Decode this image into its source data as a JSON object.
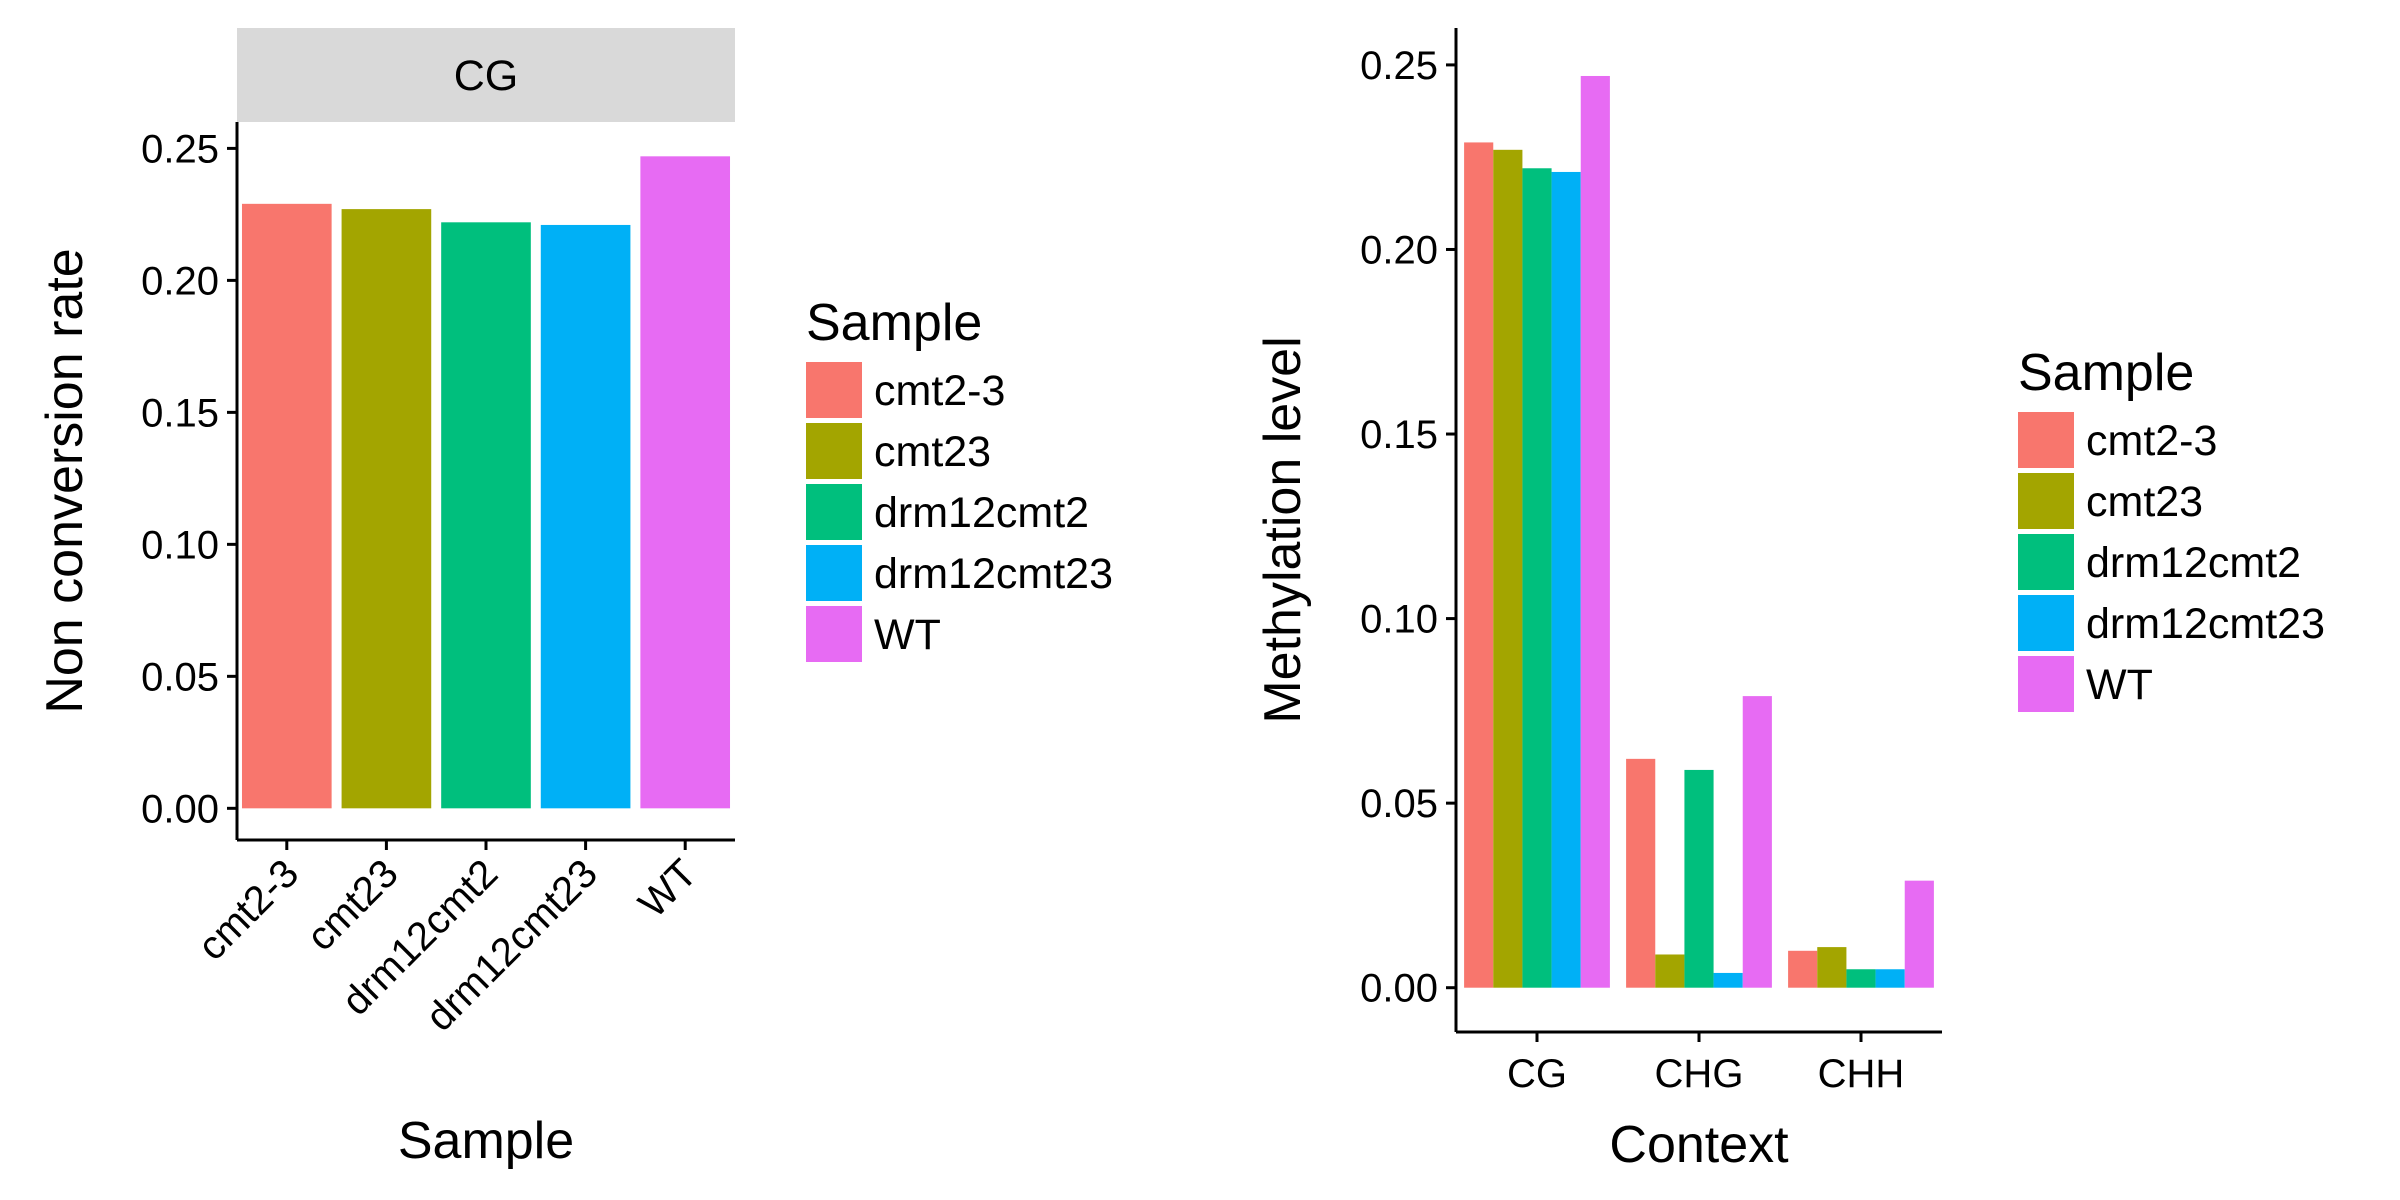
{
  "chart_data": [
    {
      "type": "bar",
      "facet": "CG",
      "categories": [
        "cmt2-3",
        "cmt23",
        "drm12cmt2",
        "drm12cmt23",
        "WT"
      ],
      "values": [
        0.229,
        0.227,
        0.222,
        0.221,
        0.247
      ],
      "colors": [
        "#F8766D",
        "#A3A500",
        "#00BF7D",
        "#00B0F6",
        "#E76BF3"
      ],
      "xlabel": "Sample",
      "ylabel": "Non conversion rate",
      "ylim": [
        -0.012,
        0.26
      ],
      "yticks": [
        "0.00",
        "0.05",
        "0.10",
        "0.15",
        "0.20",
        "0.25"
      ],
      "legend": {
        "title": "Sample",
        "position": "right",
        "entries": [
          "cmt2-3",
          "cmt23",
          "drm12cmt2",
          "drm12cmt23",
          "WT"
        ]
      },
      "grid": false
    },
    {
      "type": "bar",
      "categories": [
        "CG",
        "CHG",
        "CHH"
      ],
      "series": [
        {
          "name": "cmt2-3",
          "values": [
            0.229,
            0.062,
            0.01
          ],
          "color": "#F8766D"
        },
        {
          "name": "cmt23",
          "values": [
            0.227,
            0.009,
            0.011
          ],
          "color": "#A3A500"
        },
        {
          "name": "drm12cmt2",
          "values": [
            0.222,
            0.059,
            0.005
          ],
          "color": "#00BF7D"
        },
        {
          "name": "drm12cmt23",
          "values": [
            0.221,
            0.004,
            0.005
          ],
          "color": "#00B0F6"
        },
        {
          "name": "WT",
          "values": [
            0.247,
            0.079,
            0.029
          ],
          "color": "#E76BF3"
        }
      ],
      "xlabel": "Context",
      "ylabel": "Methylation level",
      "ylim": [
        -0.012,
        0.26
      ],
      "yticks": [
        "0.00",
        "0.05",
        "0.10",
        "0.15",
        "0.20",
        "0.25"
      ],
      "legend": {
        "title": "Sample",
        "position": "right",
        "entries": [
          "cmt2-3",
          "cmt23",
          "drm12cmt2",
          "drm12cmt23",
          "WT"
        ]
      },
      "grid": false
    }
  ]
}
